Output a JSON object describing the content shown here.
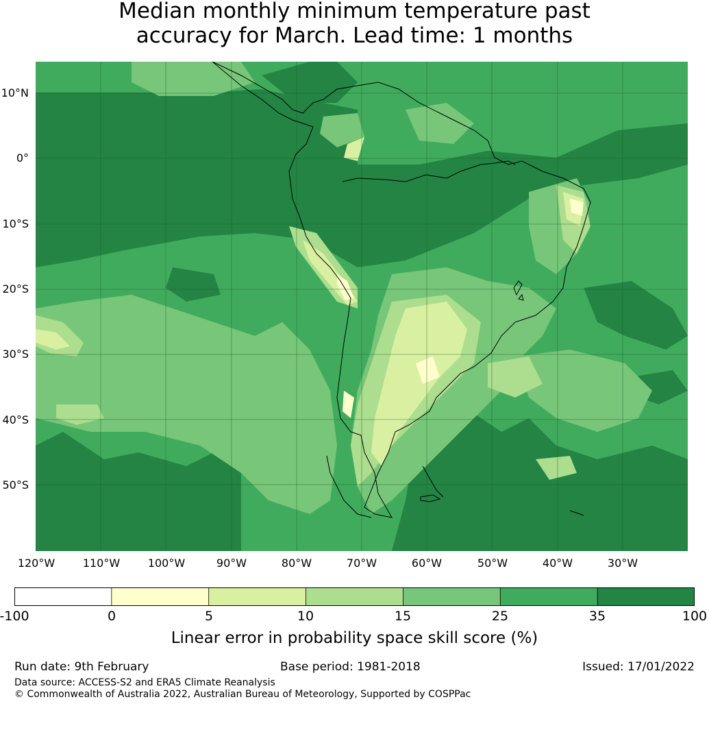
{
  "title": {
    "line1": "Median monthly minimum temperature past",
    "line2": "accuracy for March. Lead time: 1 months"
  },
  "map": {
    "region": "South America",
    "lat_labels": [
      "10°N",
      "0°",
      "10°S",
      "20°S",
      "30°S",
      "40°S",
      "50°S"
    ],
    "lon_labels": [
      "120°W",
      "110°W",
      "100°W",
      "90°W",
      "80°W",
      "70°W",
      "60°W",
      "50°W",
      "40°W",
      "30°W"
    ],
    "base_color": "#41ab5d",
    "ocean_color": "#238443",
    "land_colors": [
      "#ffffcc",
      "#d9f0a3",
      "#addd8e",
      "#78c679"
    ]
  },
  "colorbar": {
    "ticks": [
      "-100",
      "0",
      "5",
      "10",
      "15",
      "25",
      "35",
      "100"
    ],
    "colors": [
      "#ffffff",
      "#ffffcc",
      "#d9f0a3",
      "#addd8e",
      "#78c679",
      "#41ab5d",
      "#238443"
    ],
    "label": "Linear error in probability space skill score (%)"
  },
  "footer": {
    "run_date": "Run date: 9th February",
    "base_period": "Base period: 1981-2018",
    "issued": "Issued: 17/01/2022",
    "data_source": "Data source: ACCESS-S2 and ERA5 Climate Reanalysis",
    "copyright": "© Commonwealth of Australia 2022, Australian Bureau of Meteorology, Supported by COSPPac"
  }
}
